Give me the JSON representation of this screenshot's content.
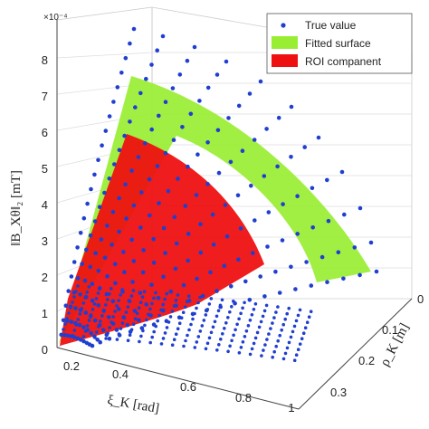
{
  "chart_data": {
    "type": "scatter",
    "subtype": "3d-surface-with-points",
    "multiplier_label": "×10⁻⁴",
    "axes": {
      "z": {
        "label": "‖B_Xθ‖₂ [mT]",
        "ticks": [
          "0",
          "1",
          "2",
          "3",
          "4",
          "5",
          "6",
          "7",
          "8"
        ],
        "range": [
          0,
          9
        ]
      },
      "x": {
        "label": "ξ_K [rad]",
        "ticks": [
          "0.2",
          "0.4",
          "0.6",
          "0.8",
          "1"
        ],
        "range": [
          0,
          1.05
        ]
      },
      "y": {
        "label": "ρ_K [m]",
        "ticks": [
          "0",
          "0.1",
          "0.2",
          "0.3"
        ],
        "range": [
          0,
          0.32
        ]
      }
    },
    "grid": true,
    "legend": {
      "position": "top-right",
      "entries": [
        {
          "label": "True value",
          "marker": "dot",
          "color": "#1f3fd0"
        },
        {
          "label": "Fitted surface",
          "marker": "patch",
          "color": "#99ee33"
        },
        {
          "label": "ROI companent",
          "marker": "patch",
          "color": "#ee1111"
        }
      ]
    },
    "colors": {
      "points": "#1f3fd0",
      "fitted_surface": "#99ee33",
      "roi": "#ee1111"
    }
  }
}
